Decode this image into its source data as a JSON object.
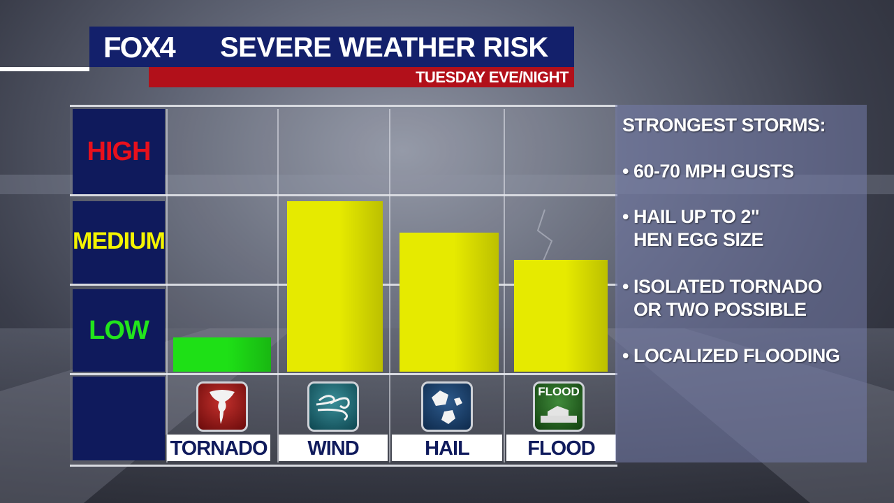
{
  "header": {
    "logo": "FOX4",
    "title": "SEVERE WEATHER RISK",
    "subtitle": "TUESDAY EVE/NIGHT"
  },
  "colors": {
    "navy": "#0f1a5c",
    "red_banner": "#b2101a",
    "high": "#e8101c",
    "medium": "#f4f400",
    "low": "#22e51c",
    "bar_low": "#1ee016",
    "bar_medium": "#e6ea00"
  },
  "chart_data": {
    "type": "bar",
    "levels": [
      "HIGH",
      "MEDIUM",
      "LOW"
    ],
    "categories": [
      "TORNADO",
      "WIND",
      "HAIL",
      "FLOOD"
    ],
    "values": [
      0.4,
      1.95,
      1.6,
      1.3
    ],
    "value_scale": "0 = bottom of LOW, 1 = LOW/MEDIUM boundary, 2 = MEDIUM/HIGH boundary, 3 = top of HIGH",
    "ylim": [
      0,
      3
    ],
    "bar_levels": [
      "LOW",
      "MEDIUM",
      "MEDIUM",
      "MEDIUM"
    ]
  },
  "icons": [
    {
      "name": "tornado-icon",
      "label": ""
    },
    {
      "name": "wind-icon",
      "label": ""
    },
    {
      "name": "hail-icon",
      "label": ""
    },
    {
      "name": "flood-icon",
      "label": "FLOOD"
    }
  ],
  "info": {
    "heading": "STRONGEST STORMS:",
    "bullets": [
      [
        "• 60-70 MPH GUSTS"
      ],
      [
        "• HAIL UP TO 2\"",
        "HEN EGG SIZE"
      ],
      [
        "• ISOLATED TORNADO",
        "OR TWO POSSIBLE"
      ],
      [
        "• LOCALIZED FLOODING"
      ]
    ]
  }
}
